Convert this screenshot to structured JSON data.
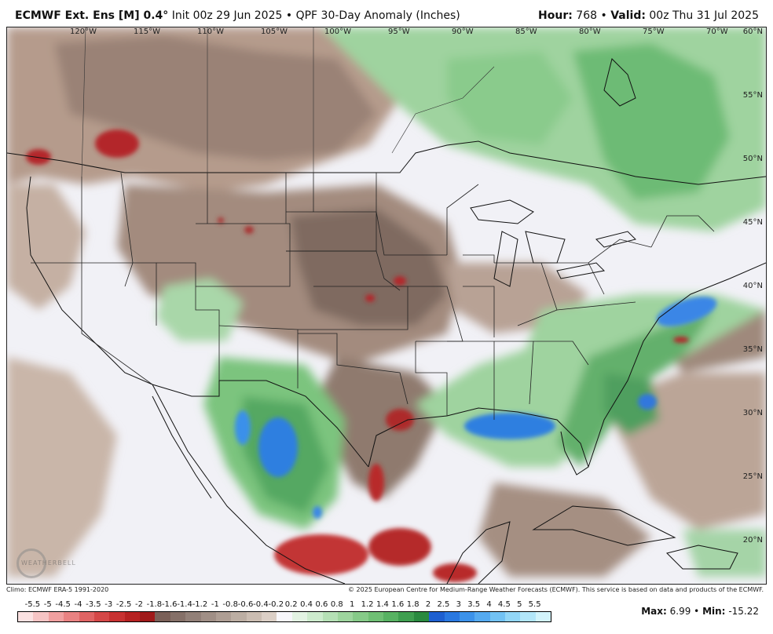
{
  "header": {
    "model": "ECMWF Ext. Ens [M] 0.4",
    "degree": "°",
    "init": "Init 00z 29 Jun 2025",
    "bullet": "•",
    "product": "QPF 30-Day Anomaly (Inches)",
    "hour_label": "Hour:",
    "hour_value": "768",
    "valid_label": "Valid:",
    "valid_value": "00z Thu 31 Jul 2025"
  },
  "map": {
    "longitudes": [
      "120°W",
      "115°W",
      "110°W",
      "105°W",
      "100°W",
      "95°W",
      "90°W",
      "85°W",
      "80°W",
      "75°W",
      "70°W"
    ],
    "latitudes": [
      "60°N",
      "55°N",
      "50°N",
      "45°N",
      "40°N",
      "35°N",
      "30°N",
      "25°N",
      "20°N"
    ],
    "logo_text": "WEATHERBELL",
    "colors": {
      "dry_strong": "#8a2a2a",
      "dry_mid": "#7a6a60",
      "dry_light": "#c9b3a5",
      "near_zero": "#f3f3f8",
      "wet_light": "#a8d8a8",
      "wet_mid": "#4fae5f",
      "wet_strong": "#2a7fd8"
    }
  },
  "credits": {
    "climo": "Climo: ECMWF ERA-5 1991-2020",
    "copyright": "© 2025 European Centre for Medium-Range Weather Forecasts (ECMWF). This service is based on data and products of the ECMWF."
  },
  "legend": {
    "labels": [
      "-5.5",
      "-5",
      "-4.5",
      "-4",
      "-3.5",
      "-3",
      "-2.5",
      "-2",
      "-1.8",
      "-1.6",
      "-1.4",
      "-1.2",
      "-1",
      "-0.8",
      "-0.6",
      "-0.4",
      "-0.2",
      "0.2",
      "0.4",
      "0.6",
      "0.8",
      "1",
      "1.2",
      "1.4",
      "1.6",
      "1.8",
      "2",
      "2.5",
      "3",
      "3.5",
      "4",
      "4.5",
      "5",
      "5.5"
    ],
    "colors": [
      "#fbe1e1",
      "#f6c4c4",
      "#f0a0a0",
      "#e98282",
      "#e06464",
      "#d54848",
      "#c83232",
      "#b62222",
      "#a01a1a",
      "#7a6058",
      "#857068",
      "#928078",
      "#a08f86",
      "#ae9e94",
      "#bcaea3",
      "#cbbdb2",
      "#dbcfc6",
      "#f7f7fb",
      "#e3f3e3",
      "#cdebcd",
      "#b5e0b5",
      "#9ed59e",
      "#86ca88",
      "#6fbf74",
      "#57b262",
      "#3f9f50",
      "#2a8a40",
      "#1e5fd0",
      "#2a78e0",
      "#3c92ea",
      "#55aaf0",
      "#72c2f4",
      "#92d6f7",
      "#b2e6f9",
      "#d2f3fb"
    ],
    "max_label": "Max:",
    "max_value": "6.99",
    "min_label": "Min:",
    "min_value": "-15.22"
  }
}
